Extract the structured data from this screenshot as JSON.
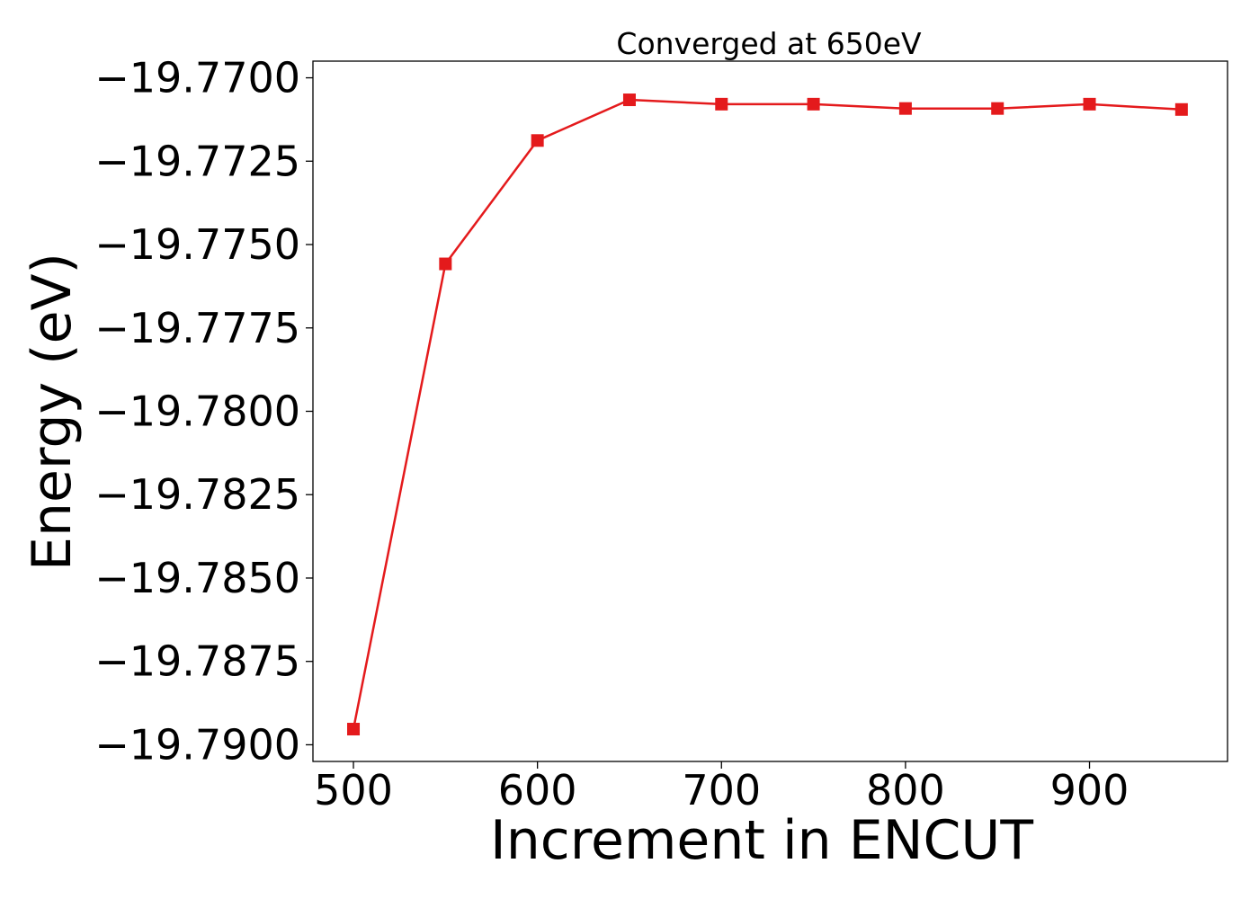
{
  "chart_data": {
    "type": "line",
    "title": "Converged at 650eV",
    "xlabel": "Increment in ENCUT",
    "ylabel": "Energy (eV)",
    "x": [
      500,
      550,
      600,
      650,
      700,
      750,
      800,
      850,
      900,
      950
    ],
    "series": [
      {
        "values": [
          -19.78953,
          -19.77558,
          -19.77188,
          -19.77066,
          -19.77079,
          -19.77079,
          -19.77092,
          -19.77092,
          -19.77079,
          -19.77095
        ],
        "color": "#e41a1c",
        "marker": "square"
      }
    ],
    "xlim": [
      478,
      975
    ],
    "ylim": [
      -19.7905,
      -19.7695
    ],
    "xticks": [
      500,
      600,
      700,
      800,
      900
    ],
    "xtick_labels": [
      "500",
      "600",
      "700",
      "800",
      "900"
    ],
    "yticks": [
      -19.77,
      -19.7725,
      -19.775,
      -19.7775,
      -19.78,
      -19.7825,
      -19.785,
      -19.7875,
      -19.79
    ],
    "ytick_labels": [
      "−19.7700",
      "−19.7725",
      "−19.7750",
      "−19.7775",
      "−19.7800",
      "−19.7825",
      "−19.7850",
      "−19.7875",
      "−19.7900"
    ],
    "grid": false,
    "legend": false
  }
}
